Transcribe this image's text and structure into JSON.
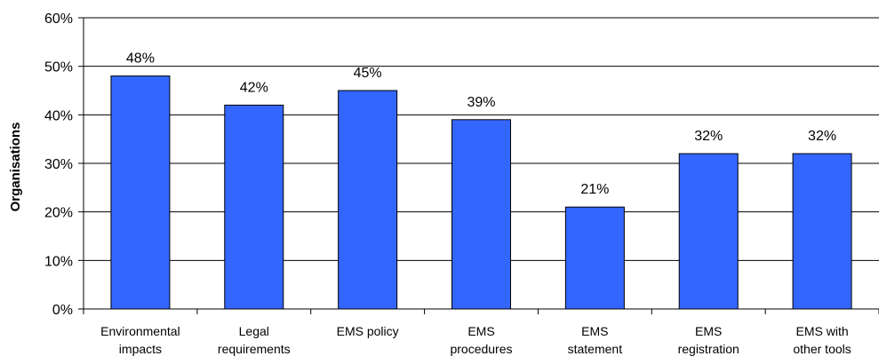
{
  "chart_data": {
    "type": "bar",
    "title": "",
    "xlabel": "",
    "ylabel": "Organisations",
    "ylim": [
      0,
      60
    ],
    "yticks": [
      "0%",
      "10%",
      "20%",
      "30%",
      "40%",
      "50%",
      "60%"
    ],
    "ytick_values": [
      0,
      10,
      20,
      30,
      40,
      50,
      60
    ],
    "grid": true,
    "categories": [
      [
        "Environmental",
        "impacts"
      ],
      [
        "Legal",
        "requirements"
      ],
      [
        "EMS policy"
      ],
      [
        "EMS",
        "procedures"
      ],
      [
        "EMS",
        "statement"
      ],
      [
        "EMS",
        "registration"
      ],
      [
        "EMS with",
        "other tools"
      ]
    ],
    "values": [
      48,
      42,
      45,
      39,
      21,
      32,
      32
    ],
    "data_labels": [
      "48%",
      "42%",
      "45%",
      "39%",
      "21%",
      "32%",
      "32%"
    ],
    "bar_color": "#3366ff",
    "bar_edge_color": "#000000"
  }
}
